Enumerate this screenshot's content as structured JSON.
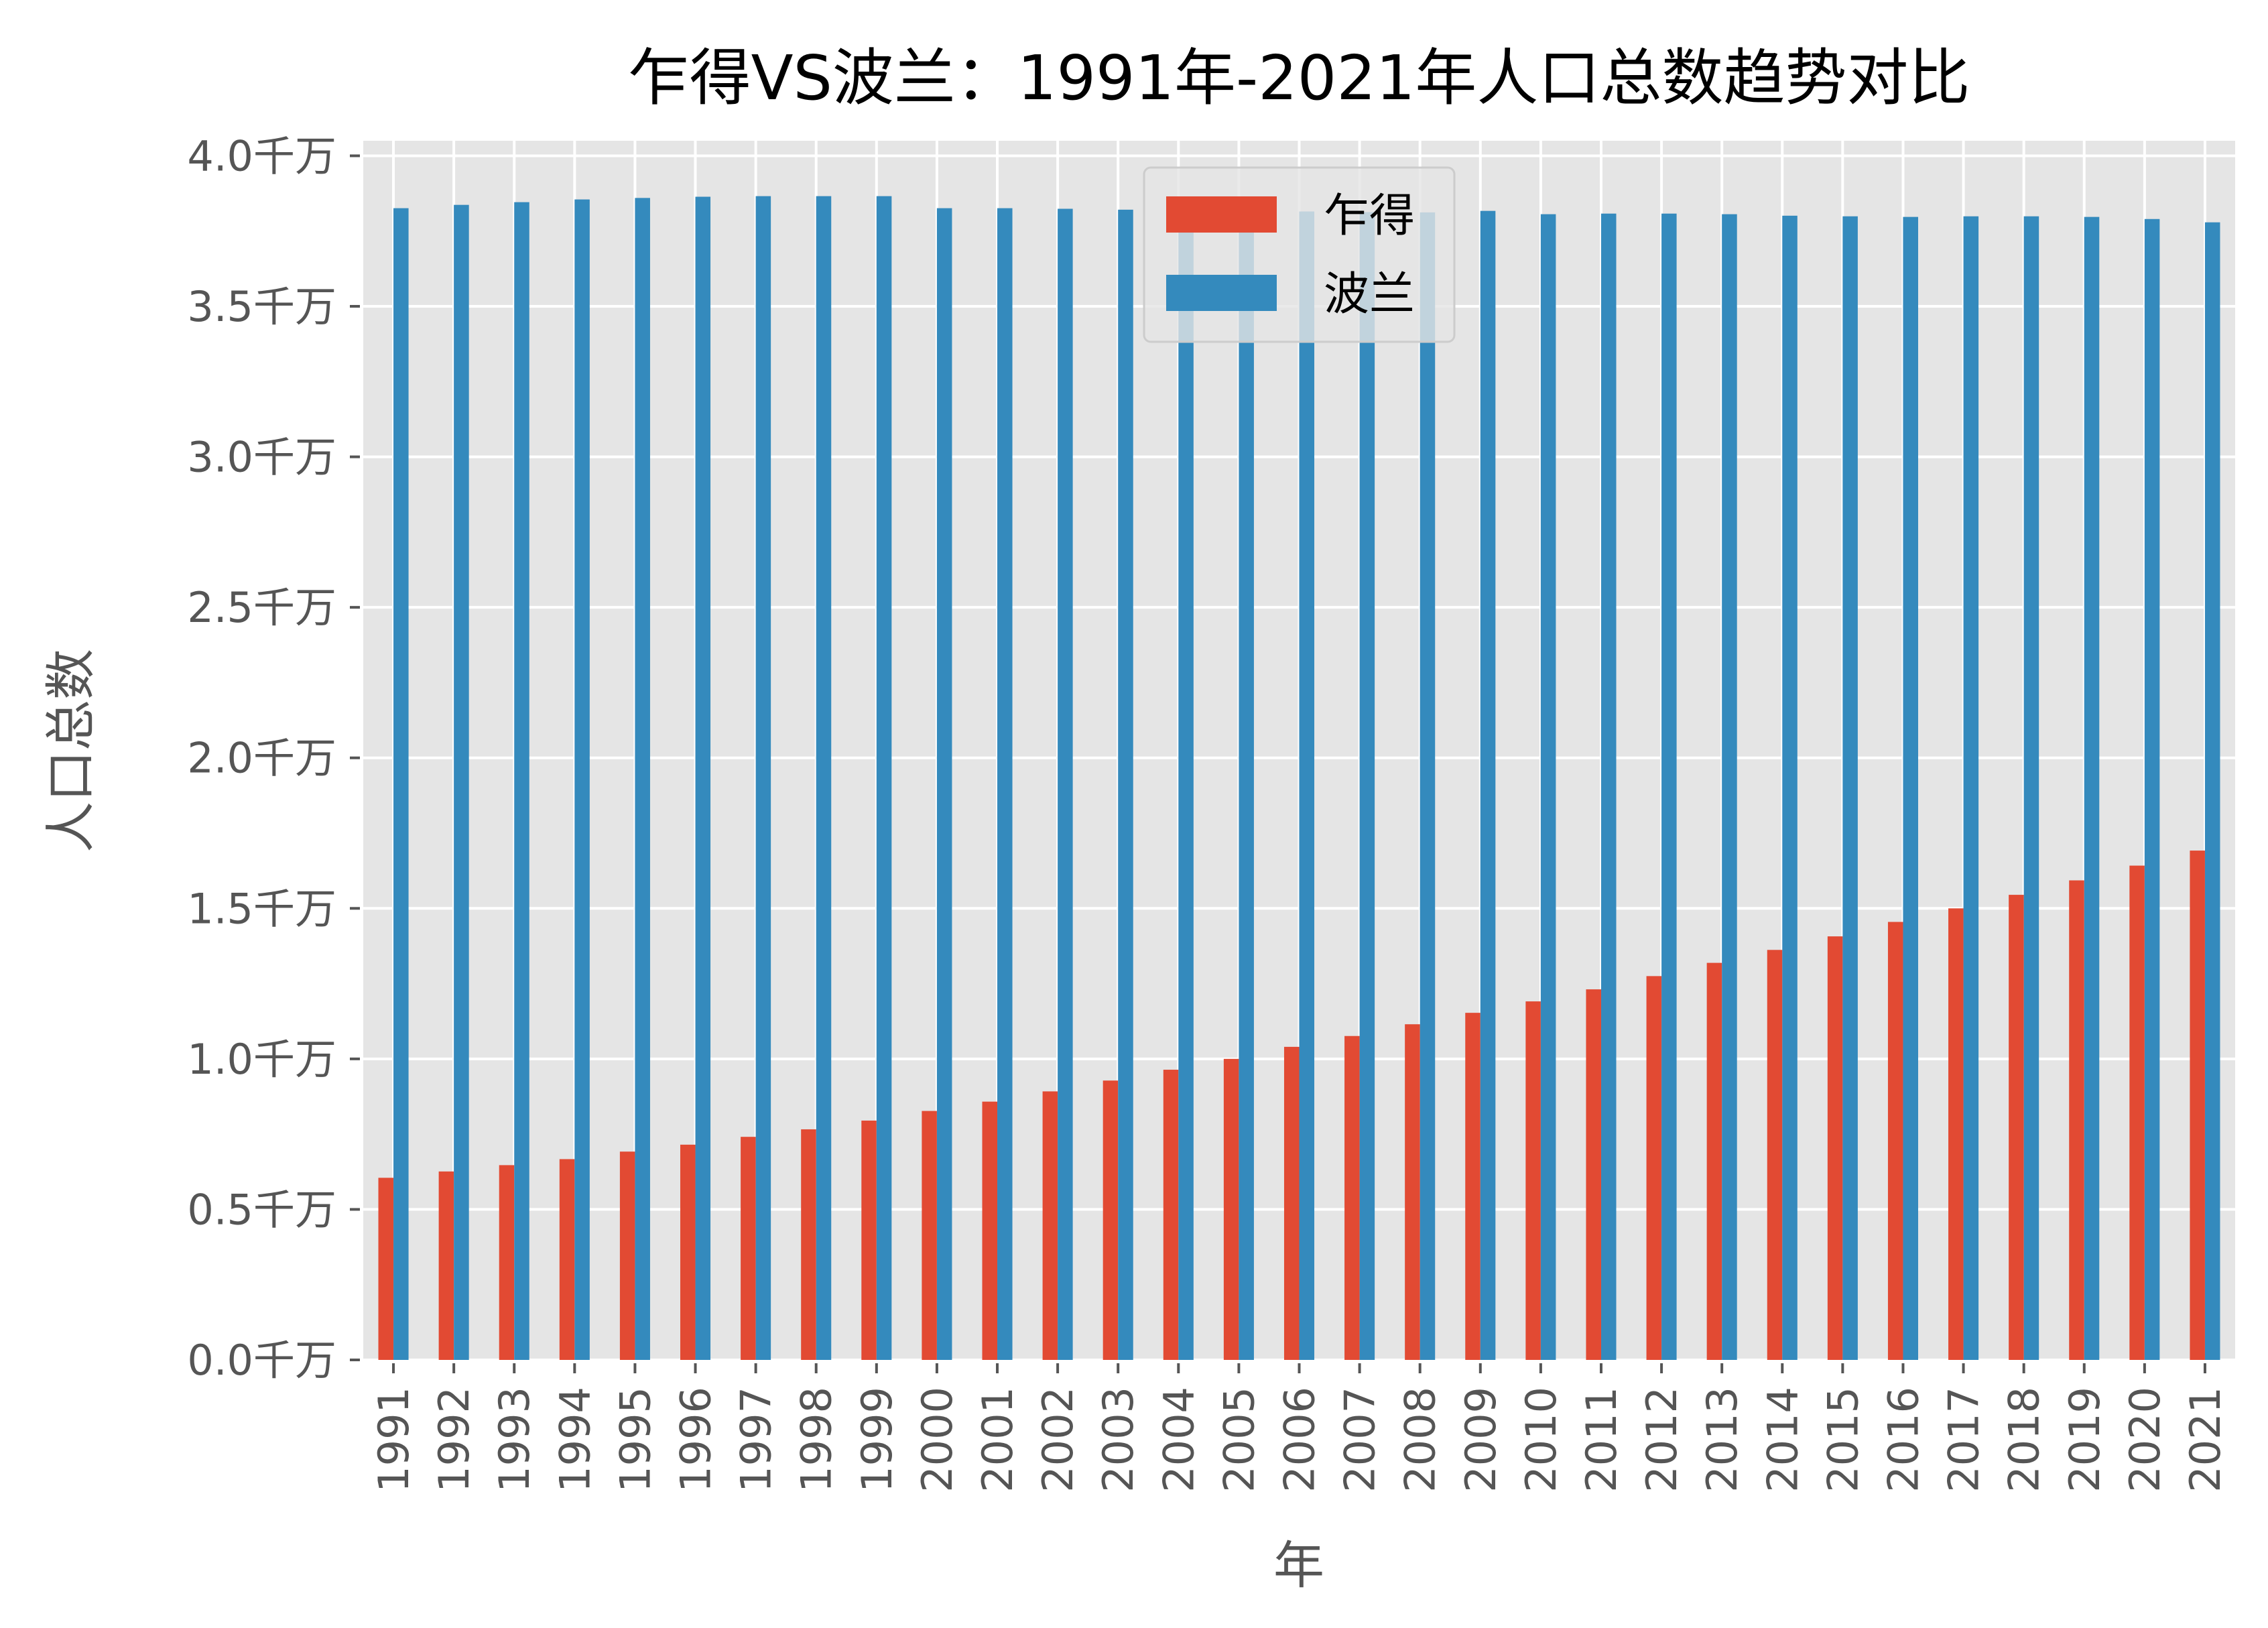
{
  "chart_data": {
    "type": "bar",
    "title": "乍得VS波兰：1991年-2021年人口总数趋势对比",
    "xlabel": "年",
    "ylabel": "人口总数",
    "ylim": [
      0,
      4.05
    ],
    "y_unit": "千万",
    "yticks": [
      0.0,
      0.5,
      1.0,
      1.5,
      2.0,
      2.5,
      3.0,
      3.5,
      4.0
    ],
    "ytick_labels": [
      "0.0千万",
      "0.5千万",
      "1.0千万",
      "1.5千万",
      "2.0千万",
      "2.5千万",
      "3.0千万",
      "3.5千万",
      "4.0千万"
    ],
    "grid": true,
    "legend_position": "top-center",
    "categories": [
      "1991",
      "1992",
      "1993",
      "1994",
      "1995",
      "1996",
      "1997",
      "1998",
      "1999",
      "2000",
      "2001",
      "2002",
      "2003",
      "2004",
      "2005",
      "2006",
      "2007",
      "2008",
      "2009",
      "2010",
      "2011",
      "2012",
      "2013",
      "2014",
      "2015",
      "2016",
      "2017",
      "2018",
      "2019",
      "2020",
      "2021"
    ],
    "series": [
      {
        "name": "乍得",
        "color": "#E24A33",
        "values": [
          0.605,
          0.626,
          0.647,
          0.667,
          0.692,
          0.715,
          0.741,
          0.766,
          0.795,
          0.827,
          0.858,
          0.892,
          0.928,
          0.964,
          1.0,
          1.04,
          1.076,
          1.115,
          1.153,
          1.191,
          1.231,
          1.275,
          1.319,
          1.362,
          1.407,
          1.455,
          1.5,
          1.545,
          1.593,
          1.642,
          1.692
        ]
      },
      {
        "name": "波兰",
        "color": "#348ABD",
        "values": [
          3.826,
          3.837,
          3.846,
          3.855,
          3.86,
          3.864,
          3.866,
          3.866,
          3.866,
          3.826,
          3.826,
          3.824,
          3.821,
          3.818,
          3.816,
          3.815,
          3.813,
          3.812,
          3.817,
          3.806,
          3.808,
          3.808,
          3.806,
          3.801,
          3.799,
          3.797,
          3.799,
          3.799,
          3.797,
          3.79,
          3.779
        ]
      }
    ],
    "background_color": "#E5E5E5"
  }
}
